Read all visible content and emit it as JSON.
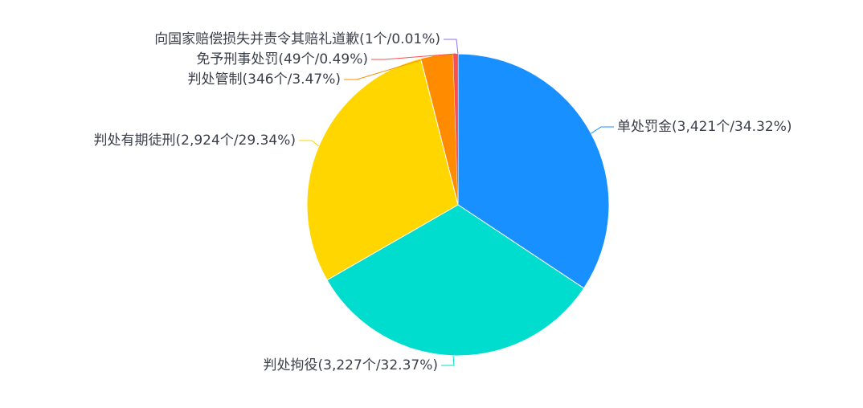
{
  "chart_data": {
    "type": "pie",
    "categories": [
      "单处罚金(3,421个/34.32%)",
      "判处拘役(3,227个/32.37%)",
      "判处有期徒刑(2,924个/29.34%)",
      "判处管制(346个/3.47%)",
      "免予刑事处罚(49个/0.49%)",
      "向国家赔偿损失并责令其赔礼道歉(1个/0.01%)"
    ],
    "values": [
      3421,
      3227,
      2924,
      346,
      49,
      1
    ],
    "colors": [
      "#1890ff",
      "#00dccd",
      "#ffd600",
      "#ff8c00",
      "#ff4d4f",
      "#8c6cf0"
    ]
  }
}
